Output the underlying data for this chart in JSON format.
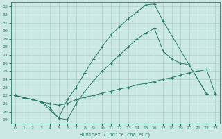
{
  "xlabel": "Humidex (Indice chaleur)",
  "bg_color": "#cce8e4",
  "line_color": "#2a7a6a",
  "grid_color": "#aad0ca",
  "xlim": [
    -0.5,
    23.5
  ],
  "ylim": [
    18.5,
    33.5
  ],
  "xticks": [
    0,
    1,
    2,
    3,
    4,
    5,
    6,
    7,
    8,
    9,
    10,
    11,
    12,
    13,
    14,
    15,
    16,
    17,
    18,
    19,
    20,
    21,
    22,
    23
  ],
  "yticks": [
    19,
    20,
    21,
    22,
    23,
    24,
    25,
    26,
    27,
    28,
    29,
    30,
    31,
    32,
    33
  ],
  "line1_x": [
    0,
    1,
    2,
    3,
    4,
    5,
    6,
    7,
    8,
    9,
    10,
    11,
    12,
    13,
    14,
    15,
    16,
    17,
    18,
    19,
    20,
    21,
    22,
    23
  ],
  "line1_y": [
    22.0,
    21.7,
    21.5,
    21.2,
    21.0,
    20.8,
    21.0,
    21.5,
    21.8,
    22.0,
    22.3,
    22.5,
    22.8,
    23.0,
    23.3,
    23.5,
    23.7,
    24.0,
    24.2,
    24.5,
    24.8,
    25.0,
    25.2,
    22.2
  ],
  "line2_x": [
    0,
    2,
    3,
    5,
    6,
    7,
    8,
    9,
    10,
    11,
    12,
    13,
    14,
    15,
    16,
    17,
    22
  ],
  "line2_y": [
    22.0,
    21.5,
    21.2,
    19.2,
    21.5,
    23.0,
    24.8,
    26.5,
    28.0,
    29.5,
    30.5,
    31.5,
    32.3,
    33.2,
    33.3,
    31.2,
    22.2
  ],
  "line3_x": [
    0,
    2,
    3,
    4,
    5,
    6,
    7,
    8,
    9,
    10,
    11,
    12,
    13,
    14,
    15,
    16,
    17,
    18,
    19,
    20,
    22
  ],
  "line3_y": [
    22.0,
    21.5,
    21.2,
    20.5,
    19.2,
    19.0,
    21.0,
    22.5,
    23.8,
    25.0,
    26.0,
    27.0,
    28.0,
    29.0,
    29.7,
    30.3,
    27.5,
    26.5,
    26.0,
    25.8,
    22.2
  ]
}
